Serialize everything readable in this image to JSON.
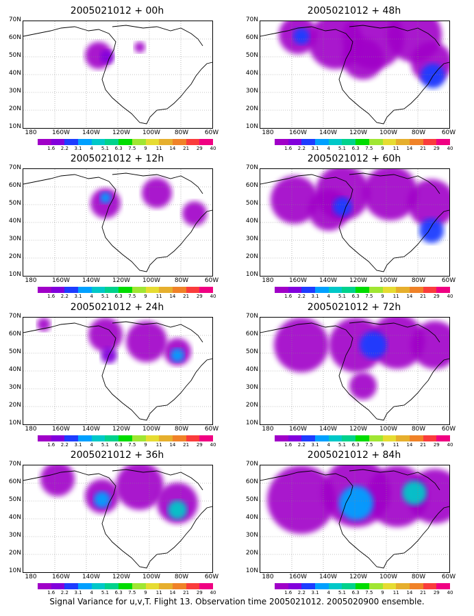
{
  "caption": "Signal Variance for u,v,T. Flight 13. Observation time 2005021012. 2005020900 ensemble.",
  "panels": [
    {
      "title": "2005021012 + 00h"
    },
    {
      "title": "2005021012 + 48h"
    },
    {
      "title": "2005021012 + 12h"
    },
    {
      "title": "2005021012 + 60h"
    },
    {
      "title": "2005021012 + 24h"
    },
    {
      "title": "2005021012 + 72h"
    },
    {
      "title": "2005021012 + 36h"
    },
    {
      "title": "2005021012 + 84h"
    }
  ],
  "lat_labels": [
    "70N",
    "60N",
    "50N",
    "40N",
    "30N",
    "20N",
    "10N"
  ],
  "lon_labels": [
    "180",
    "160W",
    "140W",
    "120W",
    "100W",
    "80W",
    "60W"
  ],
  "colorbar": {
    "labels": [
      "1.6",
      "2.2",
      "3.1",
      "4",
      "5.1",
      "6.3",
      "7.5",
      "9",
      "11",
      "14",
      "21",
      "29",
      "40"
    ],
    "colors": [
      "#a000c8",
      "#8200dc",
      "#1e3cff",
      "#00a0ff",
      "#00c8c8",
      "#00d28c",
      "#00dc00",
      "#a0e632",
      "#e6dc32",
      "#e6af2d",
      "#f08228",
      "#fa3c3c",
      "#f00082"
    ]
  }
}
